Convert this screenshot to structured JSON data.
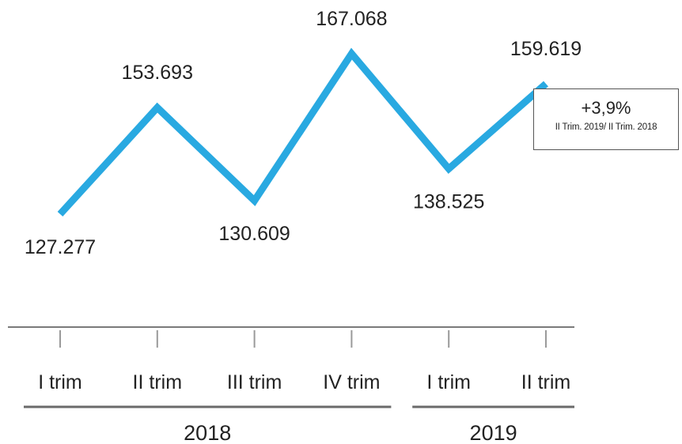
{
  "chart_data": {
    "type": "line",
    "color": "#29a9e1",
    "categories": [
      "I trim",
      "II trim",
      "III trim",
      "IV trim",
      "I trim",
      "II trim"
    ],
    "values": [
      127277,
      153693,
      130609,
      167068,
      138525,
      159619
    ],
    "value_labels": [
      "127.277",
      "153.693",
      "130.609",
      "167.068",
      "138.525",
      "159.619"
    ],
    "groups": [
      {
        "label": "2018",
        "count": 4
      },
      {
        "label": "2019",
        "count": 2
      }
    ],
    "annotation": {
      "value": "+3,9%",
      "note": "II Trim. 2019/ II Trim. 2018"
    },
    "title": "",
    "xlabel": "",
    "ylabel": "",
    "grid": false
  }
}
